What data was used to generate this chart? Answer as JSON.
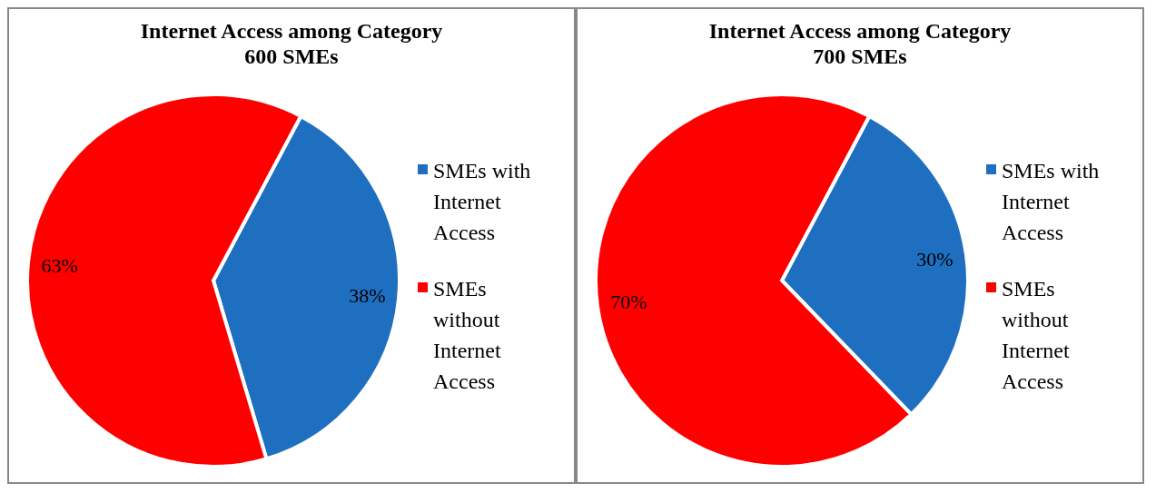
{
  "chart_data": [
    {
      "type": "pie",
      "title": "Internet Access among Category\n600 SMEs",
      "categories": [
        "SMEs with Internet Access",
        "SMEs without Internet Access"
      ],
      "values": [
        38,
        63
      ],
      "colors": [
        "#1f6fc0",
        "#ff0000"
      ],
      "value_labels": [
        "38%",
        "63%"
      ],
      "legend": "right"
    },
    {
      "type": "pie",
      "title": "Internet Access among Category\n700 SMEs",
      "categories": [
        "SMEs with Internet Access",
        "SMEs without Internet Access"
      ],
      "values": [
        30,
        70
      ],
      "colors": [
        "#1f6fc0",
        "#ff0000"
      ],
      "value_labels": [
        "30%",
        "70%"
      ],
      "legend": "right"
    }
  ]
}
